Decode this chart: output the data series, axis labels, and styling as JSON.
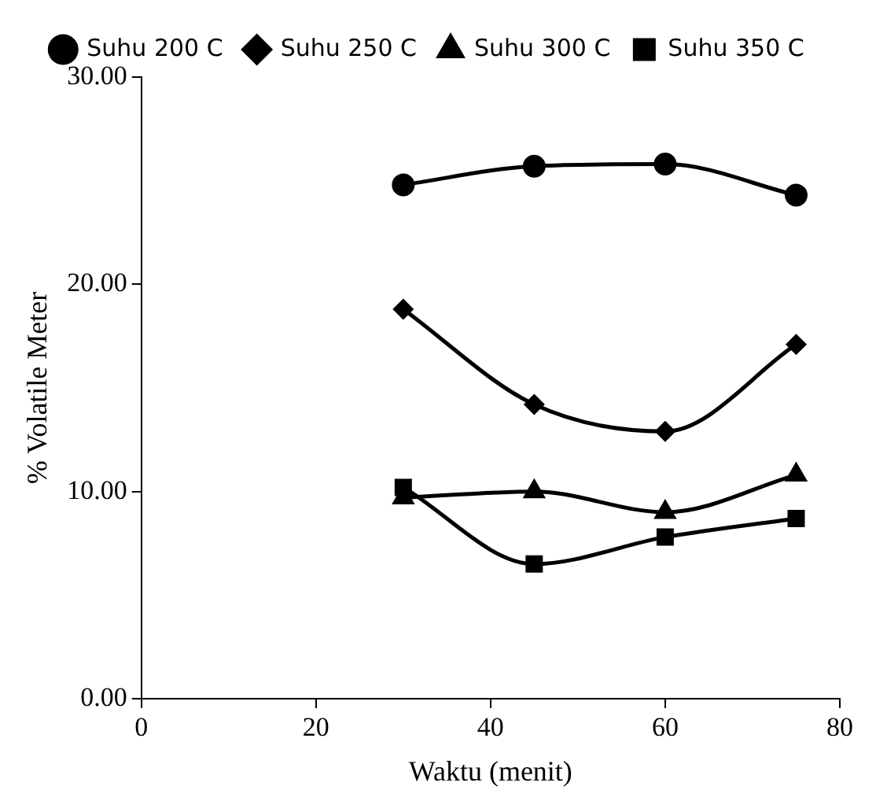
{
  "chart_data": {
    "type": "line",
    "xlabel": "Waktu (menit)",
    "ylabel": "% Volatile Meter",
    "x": [
      30,
      45,
      60,
      75
    ],
    "xlim": [
      0,
      80
    ],
    "xticks": [
      0,
      20,
      40,
      60,
      80
    ],
    "ylim": [
      0,
      30
    ],
    "yticks": [
      {
        "value": 0,
        "label": "0.00"
      },
      {
        "value": 10,
        "label": "10.00"
      },
      {
        "value": 20,
        "label": "20.00"
      },
      {
        "value": 30,
        "label": "30.00"
      }
    ],
    "grid": false,
    "legend": "top",
    "line_style": "solid",
    "series": [
      {
        "name": "Suhu 200 C",
        "color": "#000000",
        "marker": "circle",
        "values": [
          24.8,
          25.7,
          25.8,
          24.3
        ]
      },
      {
        "name": "Suhu 250 C",
        "color": "#000000",
        "marker": "diamond",
        "values": [
          18.8,
          14.2,
          12.9,
          17.1
        ]
      },
      {
        "name": "Suhu 300 C",
        "color": "#000000",
        "marker": "triangle",
        "values": [
          9.7,
          10.0,
          9.0,
          10.8
        ]
      },
      {
        "name": "Suhu 350 C",
        "color": "#000000",
        "marker": "square",
        "values": [
          10.2,
          6.5,
          7.8,
          8.7
        ]
      }
    ]
  }
}
